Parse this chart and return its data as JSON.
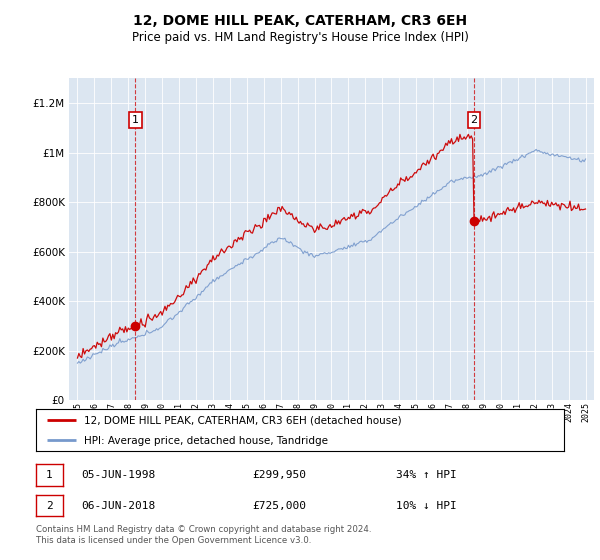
{
  "title": "12, DOME HILL PEAK, CATERHAM, CR3 6EH",
  "subtitle": "Price paid vs. HM Land Registry's House Price Index (HPI)",
  "legend_line1": "12, DOME HILL PEAK, CATERHAM, CR3 6EH (detached house)",
  "legend_line2": "HPI: Average price, detached house, Tandridge",
  "annotation1_date": "05-JUN-1998",
  "annotation1_price": "£299,950",
  "annotation1_hpi": "34% ↑ HPI",
  "annotation2_date": "06-JUN-2018",
  "annotation2_price": "£725,000",
  "annotation2_hpi": "10% ↓ HPI",
  "footer": "Contains HM Land Registry data © Crown copyright and database right 2024.\nThis data is licensed under the Open Government Licence v3.0.",
  "sale1_year": 1998.42,
  "sale1_value": 299950,
  "sale2_year": 2018.42,
  "sale2_value": 725000,
  "hpi_color": "#7799cc",
  "price_color": "#cc0000",
  "bg_color": "#dce6f1",
  "ylim_max": 1300000,
  "ylim_min": 0,
  "xlim_min": 1994.5,
  "xlim_max": 2025.5
}
